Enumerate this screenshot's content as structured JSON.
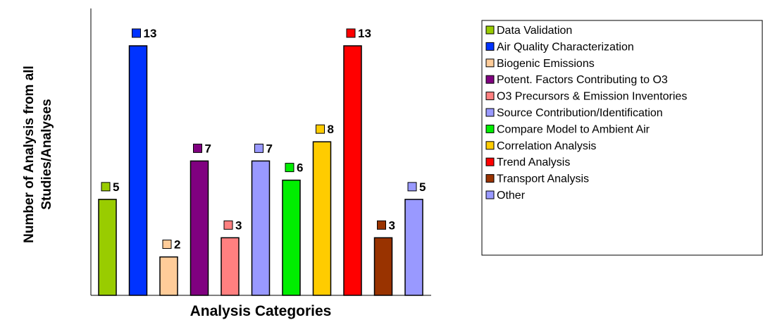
{
  "chart_data": {
    "type": "bar",
    "title": "",
    "xlabel": "Analysis Categories",
    "ylabel_lines": [
      "Number of Analysis from all",
      "Studies/Analyses"
    ],
    "ylim": [
      0,
      13
    ],
    "grid": false,
    "legend_position": "right",
    "categories": [
      "Data Validation",
      "Air Quality Characterization",
      "Biogenic Emissions",
      "Potent. Factors Contributing to O3",
      "O3 Precursors & Emission Inventories",
      "Source Contribution/Identification",
      "Compare Model to Ambient Air",
      "Correlation Analysis",
      "Trend Analysis",
      "Transport Analysis",
      "Other"
    ],
    "values": [
      5,
      13,
      2,
      7,
      3,
      7,
      6,
      8,
      13,
      3,
      5
    ],
    "colors": [
      "#99cc00",
      "#0033ff",
      "#ffcc99",
      "#800080",
      "#ff8080",
      "#9999ff",
      "#00ee00",
      "#ffcc00",
      "#ff0000",
      "#993300",
      "#9999ff"
    ]
  }
}
